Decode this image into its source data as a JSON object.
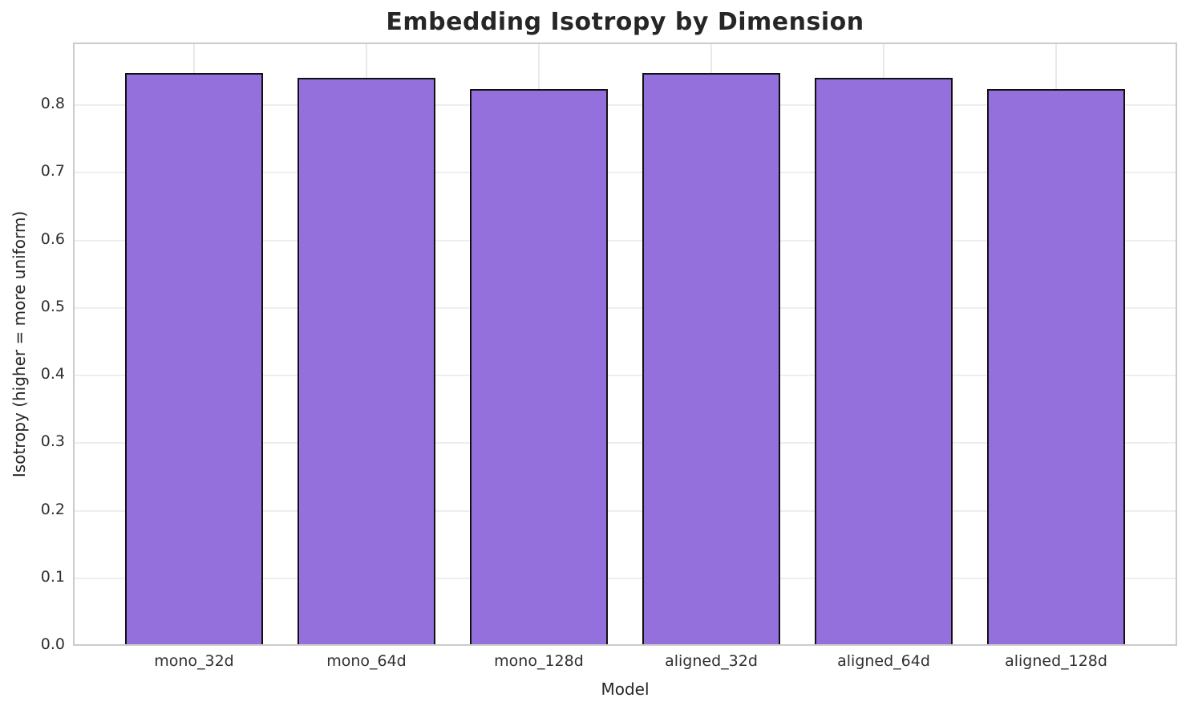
{
  "chart_data": {
    "type": "bar",
    "title": "Embedding Isotropy by Dimension",
    "xlabel": "Model",
    "ylabel": "Isotropy (higher = more uniform)",
    "categories": [
      "mono_32d",
      "mono_64d",
      "mono_128d",
      "aligned_32d",
      "aligned_64d",
      "aligned_128d"
    ],
    "values": [
      0.845,
      0.838,
      0.822,
      0.845,
      0.838,
      0.822
    ],
    "ylim": [
      0,
      0.888
    ],
    "ytick_labels": [
      "0.0",
      "0.1",
      "0.2",
      "0.3",
      "0.4",
      "0.5",
      "0.6",
      "0.7",
      "0.8"
    ],
    "grid": "on",
    "legend": "none",
    "colors": {
      "bar_fill": "#9370db",
      "bar_edge": "#111111",
      "gridline": "#eeeeee",
      "frame": "#cbcbcb",
      "text": "#262626"
    }
  }
}
